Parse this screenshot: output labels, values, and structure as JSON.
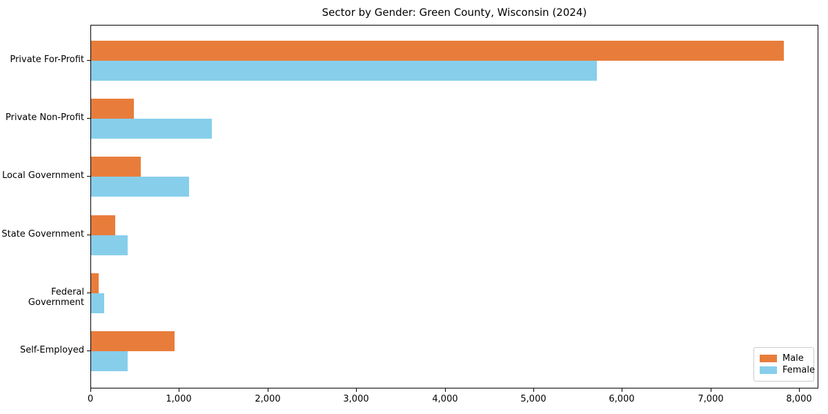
{
  "chart_data": {
    "type": "bar",
    "orientation": "horizontal",
    "title": "Sector by Gender: Green County, Wisconsin (2024)",
    "categories": [
      "Private For-Profit",
      "Private Non-Profit",
      "Local Government",
      "State Government",
      "Federal Government",
      "Self-Employed"
    ],
    "series": [
      {
        "name": "Male",
        "color": "#e87d3b",
        "values": [
          7820,
          485,
          560,
          275,
          85,
          945
        ]
      },
      {
        "name": "Female",
        "color": "#87ceeb",
        "values": [
          5710,
          1365,
          1105,
          415,
          150,
          415
        ]
      }
    ],
    "xlim": [
      0,
      8218
    ],
    "x_ticks": [
      0,
      1000,
      2000,
      3000,
      4000,
      5000,
      6000,
      7000,
      8000
    ],
    "x_tick_labels": [
      "0",
      "1,000",
      "2,000",
      "3,000",
      "4,000",
      "5,000",
      "6,000",
      "7,000",
      "8,000"
    ],
    "xlabel": "",
    "ylabel": "",
    "grid": false,
    "legend": {
      "position": "lower right",
      "entries": [
        "Male",
        "Female"
      ]
    }
  }
}
